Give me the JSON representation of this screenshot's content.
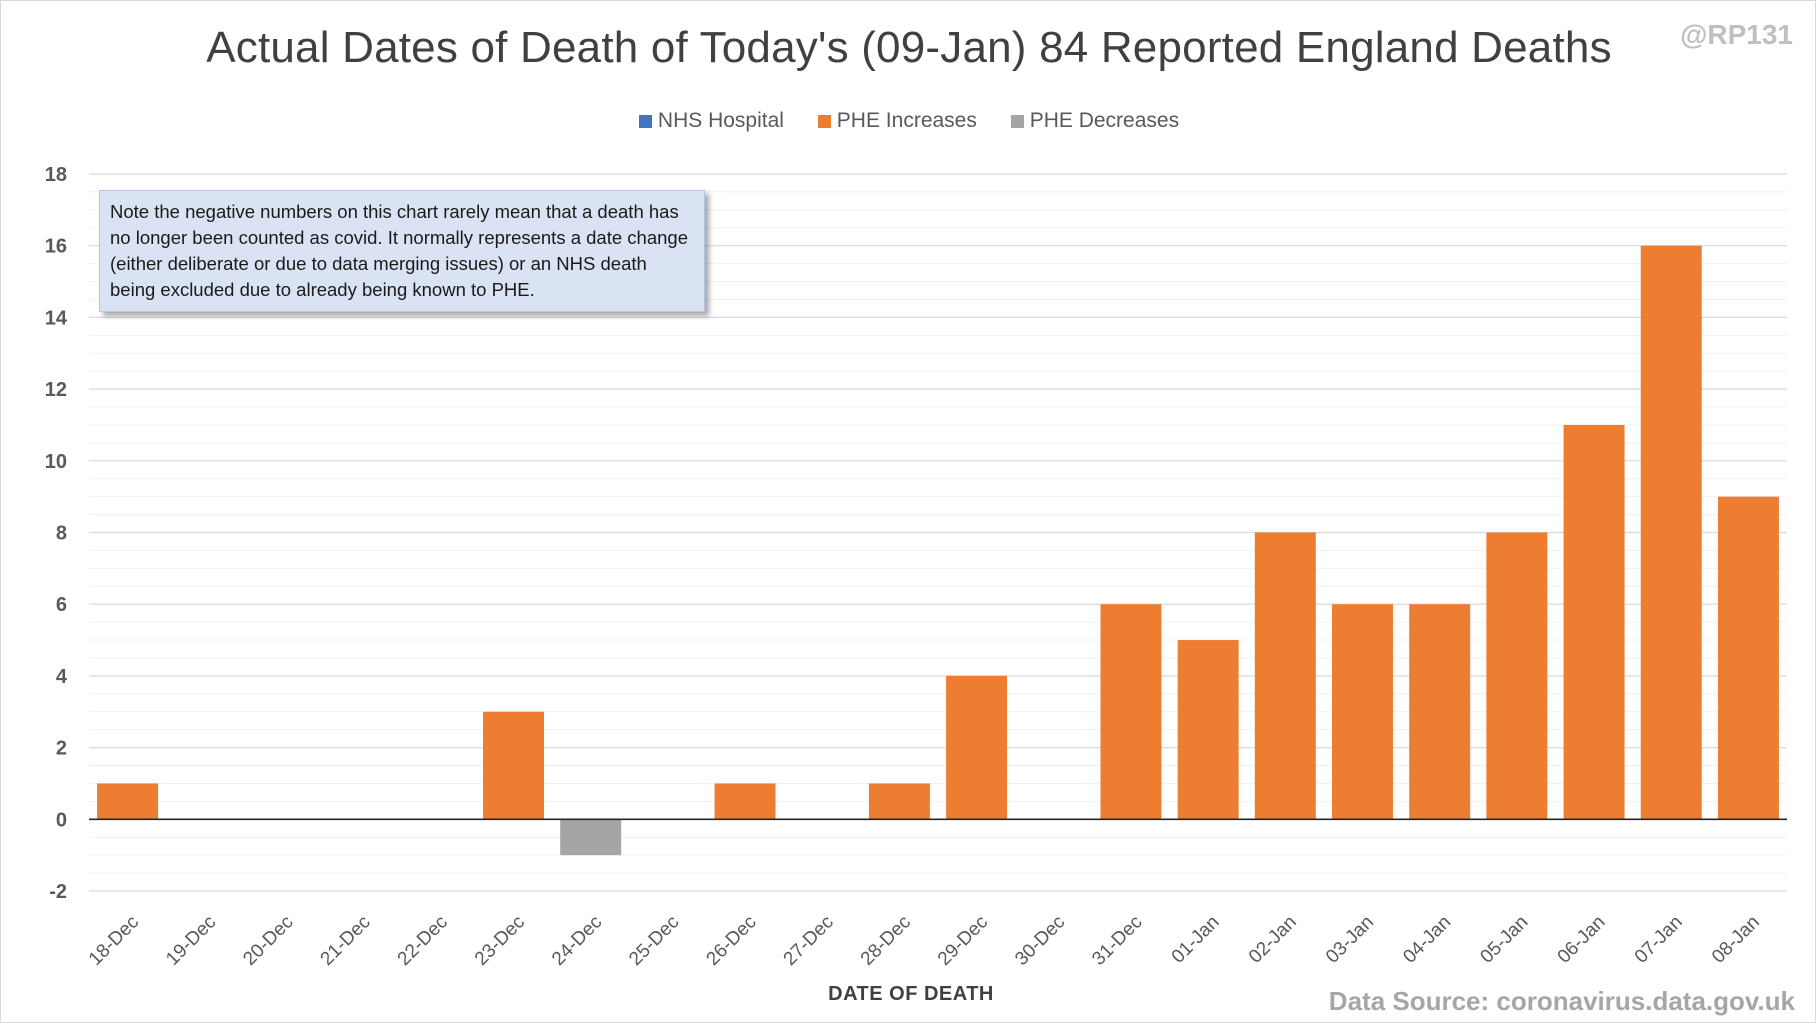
{
  "chart_data": {
    "type": "bar",
    "title": "Actual Dates of Death of Today's (09-Jan) 84 Reported England Deaths",
    "credit": "@RP131",
    "xlabel": "DATE OF DEATH",
    "ylabel": "",
    "ylim": [
      -2,
      18
    ],
    "ytick_step": 2,
    "minor_gridline_step": 0.5,
    "grid": true,
    "legend_position": "top-center",
    "categories": [
      "18-Dec",
      "19-Dec",
      "20-Dec",
      "21-Dec",
      "22-Dec",
      "23-Dec",
      "24-Dec",
      "25-Dec",
      "26-Dec",
      "27-Dec",
      "28-Dec",
      "29-Dec",
      "30-Dec",
      "31-Dec",
      "01-Jan",
      "02-Jan",
      "03-Jan",
      "04-Jan",
      "05-Jan",
      "06-Jan",
      "07-Jan",
      "08-Jan"
    ],
    "series": [
      {
        "name": "NHS Hospital",
        "color": "#4472c4",
        "values": [
          0,
          0,
          0,
          0,
          0,
          0,
          0,
          0,
          0,
          0,
          0,
          0,
          0,
          0,
          0,
          0,
          0,
          0,
          0,
          0,
          0,
          0
        ]
      },
      {
        "name": "PHE Increases",
        "color": "#ed7d31",
        "values": [
          1,
          0,
          0,
          0,
          0,
          3,
          0,
          0,
          1,
          0,
          1,
          4,
          0,
          6,
          5,
          8,
          6,
          6,
          8,
          11,
          16,
          9
        ]
      },
      {
        "name": "PHE Decreases",
        "color": "#a5a5a5",
        "values": [
          0,
          0,
          0,
          0,
          0,
          0,
          -1,
          0,
          0,
          0,
          0,
          0,
          0,
          0,
          0,
          0,
          0,
          0,
          0,
          0,
          0,
          0
        ]
      }
    ],
    "annotation": "Note the negative numbers on this chart rarely mean that a death has no longer been counted as covid. It normally represents a date change (either deliberate or due to data merging issues) or an NHS death being excluded due to already being known to PHE.",
    "source": "Data Source: coronavirus.data.gov.uk"
  }
}
